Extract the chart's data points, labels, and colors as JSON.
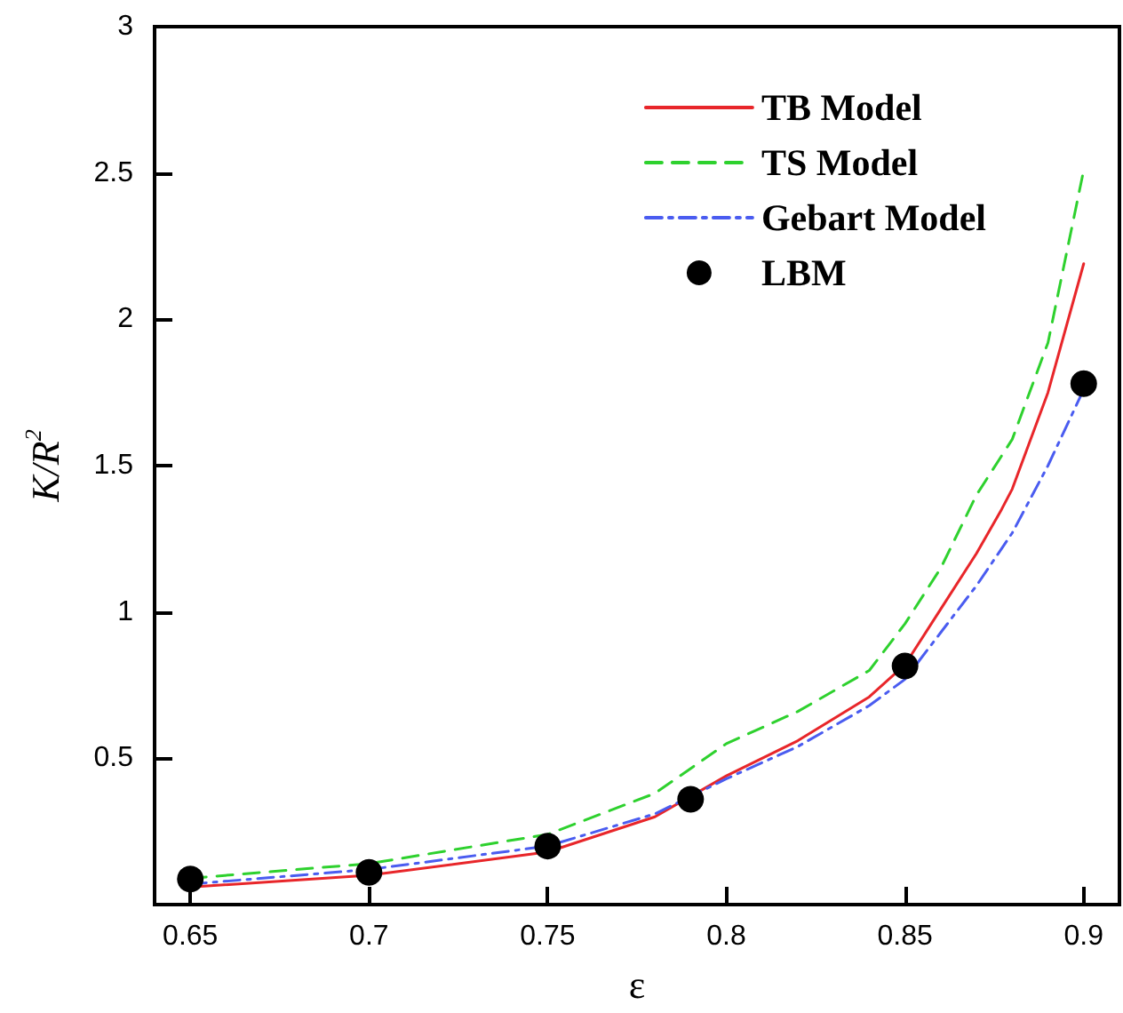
{
  "chart_data": {
    "type": "line",
    "xlabel": "ε",
    "ylabel": "K/R$^{2}$",
    "xlim": [
      0.64,
      0.91
    ],
    "xticks": [
      0.65,
      0.7,
      0.75,
      0.8,
      0.85,
      0.9
    ],
    "ylim": [
      0,
      3
    ],
    "yticks": [
      0.5,
      1,
      1.5,
      2,
      2.5,
      3
    ],
    "grid": false,
    "legend": "top right",
    "series": [
      {
        "name": "TB Model",
        "color": "#e8262a",
        "line_style": "solid",
        "marker": "none",
        "x": [
          0.65,
          0.7,
          0.75,
          0.78,
          0.8,
          0.82,
          0.84,
          0.85,
          0.86,
          0.87,
          0.877,
          0.88,
          0.89,
          0.9
        ],
        "values": [
          0.06,
          0.1,
          0.18,
          0.3,
          0.44,
          0.56,
          0.71,
          0.82,
          1.01,
          1.2,
          1.35,
          1.42,
          1.75,
          2.19
        ]
      },
      {
        "name": "TS Model",
        "color": "#2ed12e",
        "line_style": "dashed",
        "marker": "none",
        "x": [
          0.65,
          0.7,
          0.75,
          0.78,
          0.8,
          0.82,
          0.84,
          0.85,
          0.86,
          0.87,
          0.88,
          0.89,
          0.9
        ],
        "values": [
          0.09,
          0.14,
          0.24,
          0.38,
          0.55,
          0.66,
          0.8,
          0.96,
          1.15,
          1.4,
          1.59,
          1.92,
          2.51
        ]
      },
      {
        "name": "Gebart Model",
        "color": "#4a5cf0",
        "line_style": "dashdot",
        "marker": "none",
        "x": [
          0.65,
          0.7,
          0.75,
          0.78,
          0.8,
          0.82,
          0.84,
          0.85,
          0.86,
          0.87,
          0.88,
          0.89,
          0.9
        ],
        "values": [
          0.07,
          0.12,
          0.2,
          0.31,
          0.43,
          0.54,
          0.68,
          0.77,
          0.93,
          1.09,
          1.27,
          1.5,
          1.76
        ]
      },
      {
        "name": "LBM",
        "type": "scatter",
        "color": "#000000",
        "marker": "circle",
        "x": [
          0.65,
          0.7,
          0.75,
          0.79,
          0.85,
          0.9
        ],
        "values": [
          0.087,
          0.11,
          0.2,
          0.36,
          0.815,
          1.78
        ]
      }
    ]
  }
}
